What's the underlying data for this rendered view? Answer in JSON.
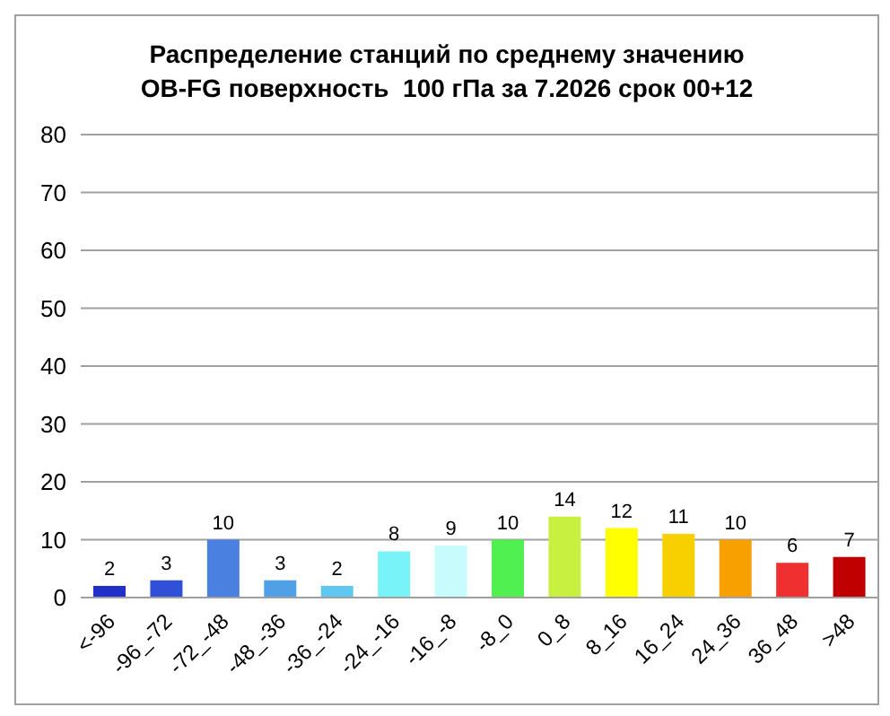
{
  "chart_data": {
    "type": "bar",
    "title": "Распределение станций по среднему значению\nOB-FG поверхность  100 гПа за 7.2026 срок 00+12",
    "categories": [
      "<-96",
      "-96_-72",
      "-72_-48",
      "-48_-36",
      "-36_-24",
      "-24_-16",
      "-16_-8",
      "-8_0",
      "0_8",
      "8_16",
      "16_24",
      "24_36",
      "36_48",
      ">48"
    ],
    "values": [
      2,
      3,
      10,
      3,
      2,
      8,
      9,
      10,
      14,
      12,
      11,
      10,
      6,
      7
    ],
    "colors": [
      "#2030c8",
      "#3050d8",
      "#4a80e0",
      "#50a0e8",
      "#60c8f0",
      "#78f4f8",
      "#c8fcfc",
      "#50f050",
      "#c8f040",
      "#ffff00",
      "#f8d000",
      "#f8a000",
      "#f03030",
      "#c00000"
    ],
    "ylim": [
      0,
      80
    ],
    "yticks": [
      0,
      10,
      20,
      30,
      40,
      50,
      60,
      70,
      80
    ],
    "grid": "y",
    "data_labels": true
  }
}
